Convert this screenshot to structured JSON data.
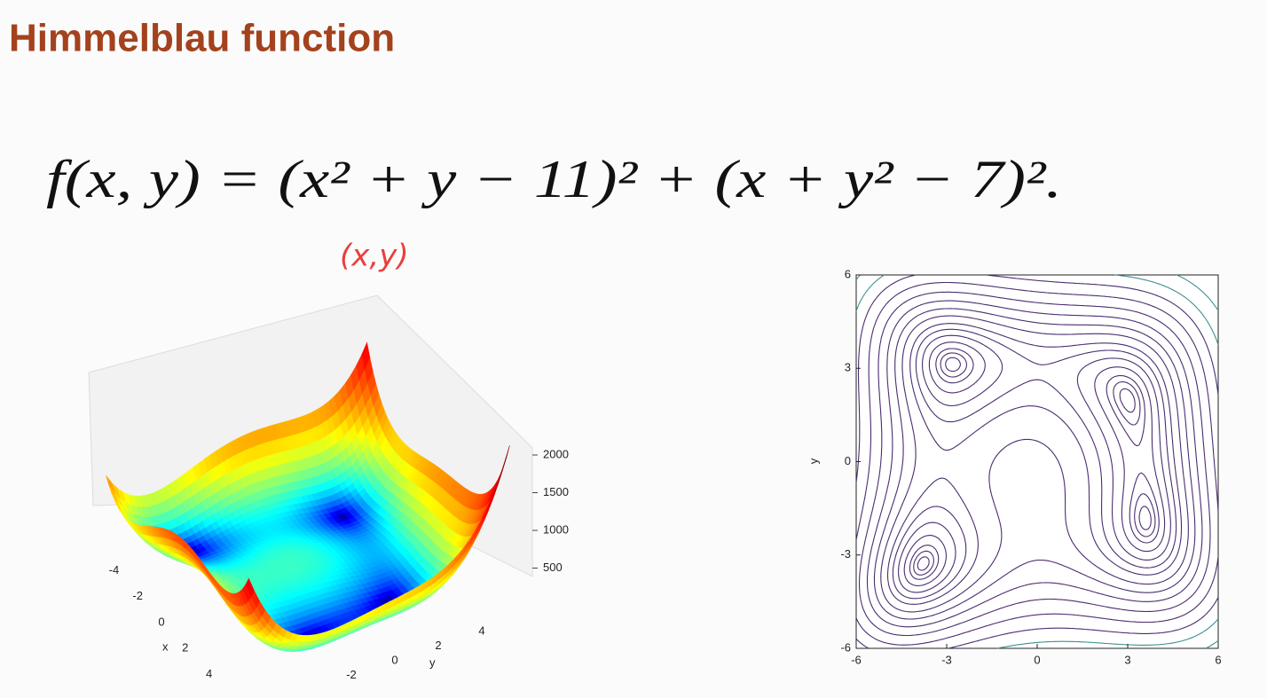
{
  "header": {
    "title": "Himmelblau function"
  },
  "formula": "f(x, y) = (x² + y − 11)² + (x + y² − 7)².",
  "annotation": "(x,y)",
  "chart_data": [
    {
      "type": "surface3d",
      "xlim": [
        -6,
        6
      ],
      "ylim": [
        -6,
        6
      ],
      "zlim": [
        0,
        2000
      ],
      "xticks": [
        -4,
        -2,
        0,
        2,
        4
      ],
      "yticks": [
        -2,
        0,
        2,
        4
      ],
      "zticks": [
        500,
        1000,
        1500,
        2000
      ],
      "x_label": "x",
      "y_label": "y"
    },
    {
      "type": "contour",
      "xlim": [
        -6,
        6
      ],
      "ylim": [
        -6,
        6
      ],
      "xticks": [
        -6,
        -3,
        0,
        3,
        6
      ],
      "yticks": [
        -6,
        -3,
        0,
        3,
        6
      ],
      "y_label": "y",
      "levels": [
        2,
        6,
        12,
        25,
        45,
        70,
        100,
        150,
        210,
        290,
        400,
        550,
        750,
        1000,
        1400
      ],
      "color": "#4b2c6f"
    }
  ]
}
